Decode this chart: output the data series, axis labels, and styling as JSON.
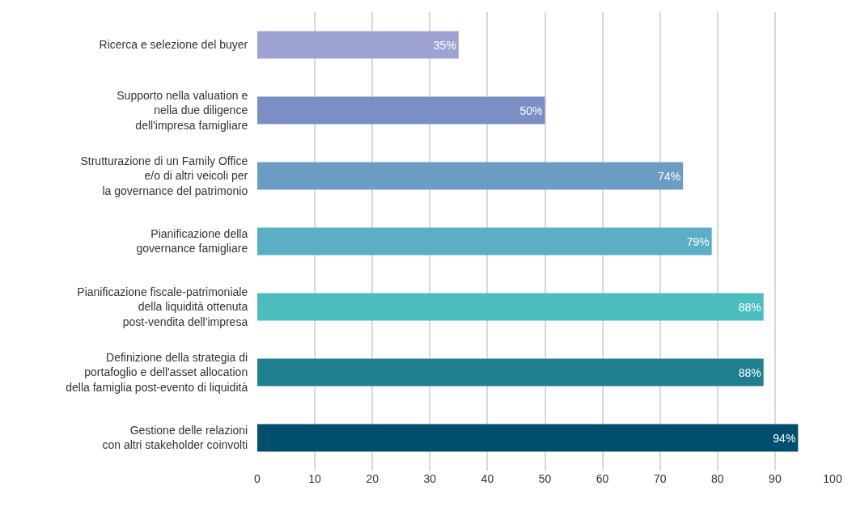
{
  "chart_data": {
    "type": "bar",
    "orientation": "horizontal",
    "categories": [
      "Ricerca e selezione del buyer",
      "Supporto nella valuation e\nnella due diligence\ndell'impresa famigliare",
      "Strutturazione di un Family Office\ne/o di altri veicoli per\nla governance del patrimonio",
      "Pianificazione della\ngovernance famigliare",
      "Pianificazione fiscale-patrimoniale\ndella liquidità ottenuta\npost-vendita dell'impresa",
      "Definizione della strategia di\nportafoglio e dell'asset allocation\ndella famiglia post-evento di liquidità",
      "Gestione delle relazioni\ncon altri stakeholder coinvolti"
    ],
    "values": [
      35,
      50,
      74,
      79,
      88,
      88,
      94
    ],
    "value_labels": [
      "35%",
      "50%",
      "74%",
      "79%",
      "88%",
      "88%",
      "94%"
    ],
    "colors": [
      "#9fa3d3",
      "#7b8fc4",
      "#6b9cc4",
      "#5aafc4",
      "#4bbdbf",
      "#1f7f8f",
      "#004f6e"
    ],
    "xlim": [
      0,
      100
    ],
    "xticks": [
      0,
      10,
      20,
      30,
      40,
      50,
      60,
      70,
      80,
      90,
      100
    ],
    "grid": "x"
  }
}
